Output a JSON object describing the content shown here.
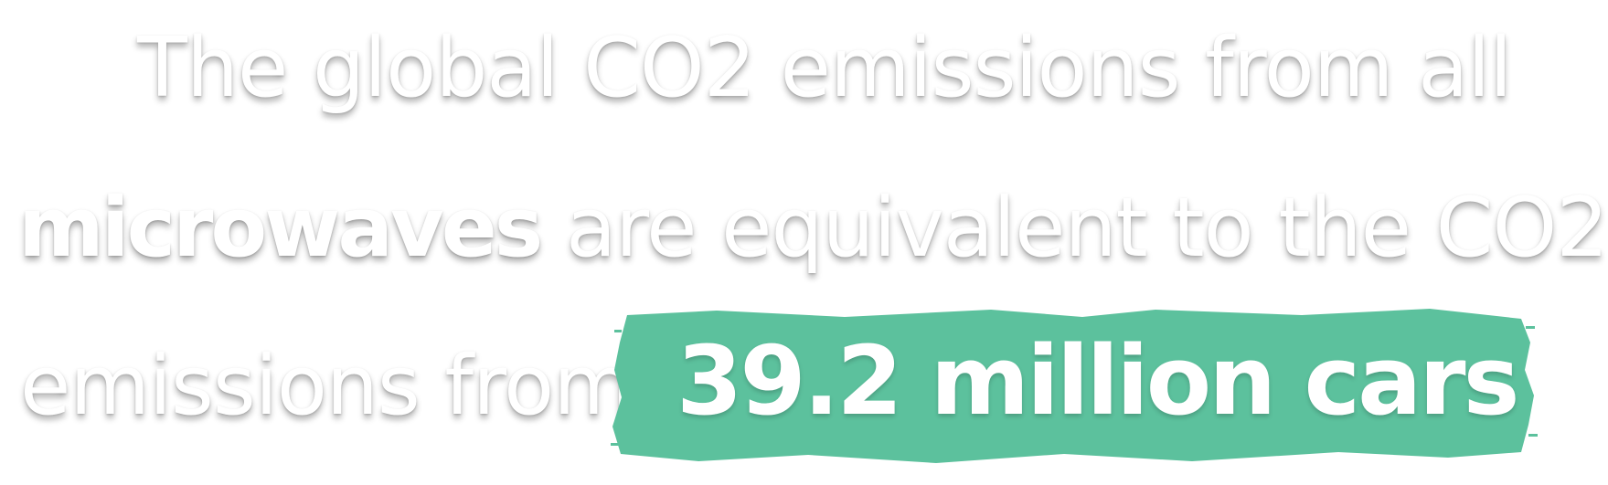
{
  "statement": {
    "line1": "The global CO2 emissions from all",
    "line2_bold": "microwaves",
    "line2_rest": "are equivalent to the CO2",
    "line3": "emissions from",
    "highlight": "39.2 million cars"
  },
  "colors": {
    "highlight_brush": "#5cc19d",
    "text": "#ffffff"
  }
}
